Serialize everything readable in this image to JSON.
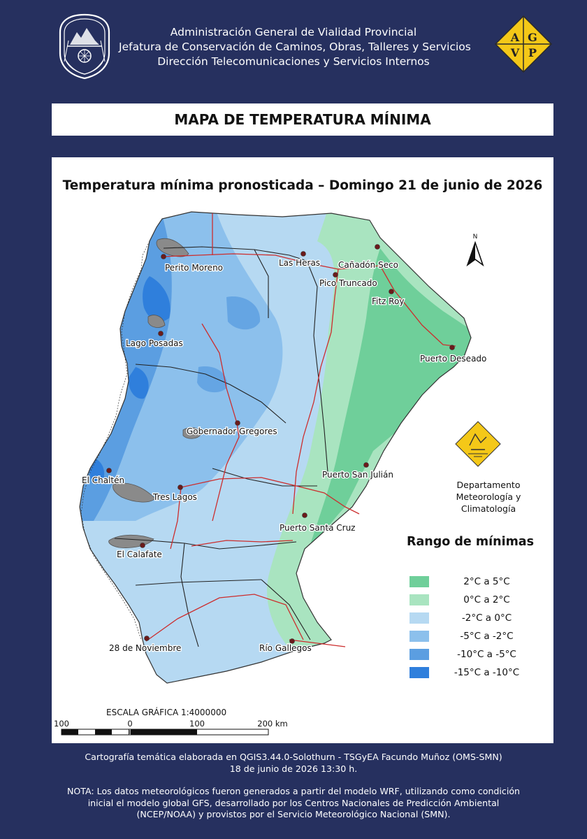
{
  "header": {
    "line1": "Administración General de Vialidad Provincial",
    "line2": "Jefatura de Conservación de Caminos, Obras, Talleres y Servicios",
    "line3": "Dirección Telecomunicaciones y Servicios Internos",
    "left_logo": "provincial-seal-icon",
    "right_logo": {
      "icon": "agvp-diamond-logo",
      "letters": [
        "A",
        "G",
        "V",
        "P"
      ]
    }
  },
  "title": "MAPA DE TEMPERATURA MÍNIMA",
  "map": {
    "subtitle": "Temperatura mínima pronosticada – Domingo 21 de junio de 2026",
    "north_label": "N",
    "cities": [
      "Perito Moreno",
      "Las Heras",
      "Cañadón Seco",
      "Pico Truncado",
      "Fitz Roy",
      "Lago Posadas",
      "Puerto Deseado",
      "Gobernador Gregores",
      "Puerto San Julián",
      "El Chaltén",
      "Tres Lagos",
      "Puerto Santa Cruz",
      "El Calafate",
      "28 de Noviembre",
      "Río Gallegos"
    ],
    "department": {
      "logo_icon": "dtysi-diamond-logo",
      "line1": "Departamento",
      "line2": "Meteorología y Climatología"
    },
    "legend": {
      "title": "Rango  de mínimas",
      "items": [
        {
          "label": "2°C a 5°C",
          "color": "#6fcf9a"
        },
        {
          "label": "0°C a 2°C",
          "color": "#a9e4c0"
        },
        {
          "label": "-2°C a 0°C",
          "color": "#b6d9f2"
        },
        {
          "label": "-5°C a -2°C",
          "color": "#8cc0ec"
        },
        {
          "label": "-10°C a -5°C",
          "color": "#5b9ee1"
        },
        {
          "label": "-15°C a -10°C",
          "color": "#2f7fdc"
        }
      ]
    },
    "scale": {
      "title": "ESCALA GRÁFICA 1:4000000",
      "labels": [
        "100",
        "0",
        "100",
        "200 km"
      ]
    }
  },
  "footer": {
    "credit1": "Cartografía temática elaborada en QGIS3.44.0-Solothurn - TSGyEA Facundo Muñoz (OMS-SMN)",
    "credit2": "18 de junio de 2026 13:30 h.",
    "note1": "NOTA: Los datos meteorológicos fueron generados a partir del modelo WRF, utilizando como condición",
    "note2": "inicial el modelo global GFS, desarrollado por los Centros Nacionales de Predicción Ambiental",
    "note3": "(NCEP/NOAA) y provistos por el Servicio Meteorológico Nacional (SMN)."
  }
}
